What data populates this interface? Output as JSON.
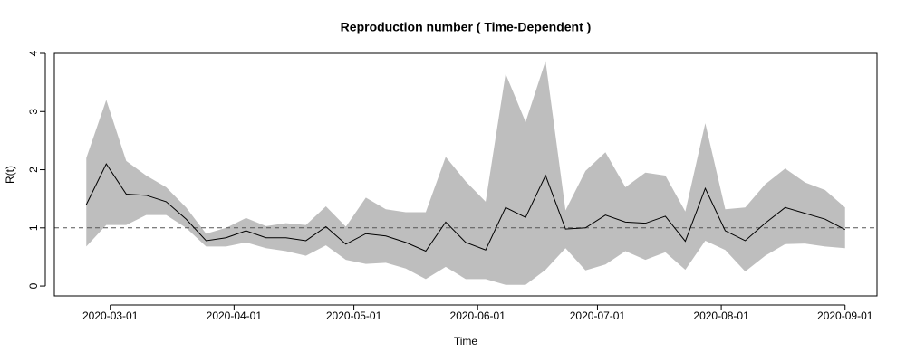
{
  "chart_data": {
    "type": "line",
    "title": "Reproduction number ( Time-Dependent )",
    "x_label": "Time",
    "y_label": "R(t)",
    "x": [
      "2020-02-24",
      "2020-02-29",
      "2020-03-05",
      "2020-03-10",
      "2020-03-15",
      "2020-03-20",
      "2020-03-25",
      "2020-03-30",
      "2020-04-04",
      "2020-04-09",
      "2020-04-14",
      "2020-04-19",
      "2020-04-24",
      "2020-04-29",
      "2020-05-04",
      "2020-05-09",
      "2020-05-14",
      "2020-05-19",
      "2020-05-24",
      "2020-05-29",
      "2020-06-03",
      "2020-06-08",
      "2020-06-13",
      "2020-06-18",
      "2020-06-23",
      "2020-06-28",
      "2020-07-03",
      "2020-07-08",
      "2020-07-13",
      "2020-07-18",
      "2020-07-23",
      "2020-07-28",
      "2020-08-02",
      "2020-08-07",
      "2020-08-12",
      "2020-08-17",
      "2020-08-22",
      "2020-08-27",
      "2020-09-01"
    ],
    "values": [
      1.4,
      2.1,
      1.58,
      1.56,
      1.45,
      1.15,
      0.78,
      0.83,
      0.95,
      0.83,
      0.83,
      0.78,
      1.02,
      0.72,
      0.9,
      0.86,
      0.75,
      0.6,
      1.1,
      0.75,
      0.62,
      1.35,
      1.18,
      1.9,
      0.98,
      1.0,
      1.22,
      1.1,
      1.08,
      1.2,
      0.77,
      1.68,
      0.95,
      0.78,
      1.08,
      1.35,
      1.25,
      1.15,
      0.97
    ],
    "lower": [
      0.68,
      1.05,
      1.05,
      1.22,
      1.22,
      1.0,
      0.68,
      0.68,
      0.75,
      0.65,
      0.6,
      0.52,
      0.7,
      0.45,
      0.38,
      0.4,
      0.3,
      0.12,
      0.33,
      0.12,
      0.12,
      0.02,
      0.02,
      0.28,
      0.65,
      0.27,
      0.37,
      0.6,
      0.45,
      0.58,
      0.28,
      0.78,
      0.62,
      0.25,
      0.52,
      0.72,
      0.73,
      0.68,
      0.65
    ],
    "upper": [
      2.2,
      3.2,
      2.15,
      1.9,
      1.7,
      1.35,
      0.9,
      1.0,
      1.17,
      1.03,
      1.08,
      1.05,
      1.37,
      1.02,
      1.52,
      1.32,
      1.27,
      1.27,
      2.22,
      1.8,
      1.45,
      3.65,
      2.82,
      3.87,
      1.3,
      1.98,
      2.3,
      1.7,
      1.95,
      1.9,
      1.28,
      2.8,
      1.32,
      1.35,
      1.75,
      2.02,
      1.78,
      1.65,
      1.35
    ],
    "color": "#000000",
    "band_color": "#bebebe",
    "reference_line": 1,
    "xlim": [
      "2020-02-16",
      "2020-09-09"
    ],
    "xticks": [
      "2020-03-01",
      "2020-04-01",
      "2020-05-01",
      "2020-06-01",
      "2020-07-01",
      "2020-08-01",
      "2020-09-01"
    ],
    "ylim": [
      -0.17,
      4.0
    ],
    "yticks": [
      0,
      1,
      2,
      3,
      4
    ]
  }
}
